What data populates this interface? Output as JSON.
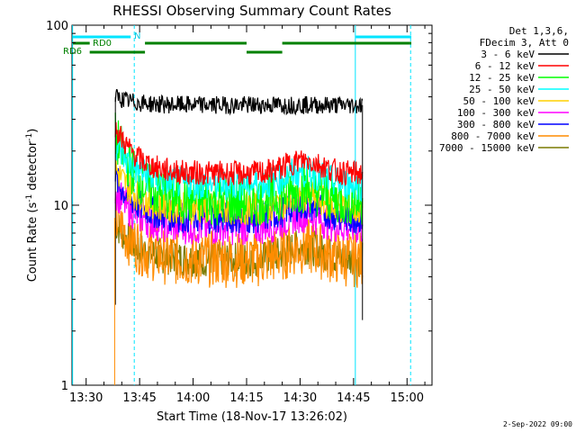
{
  "chart_data": {
    "type": "line",
    "title": "RHESSI Observing Summary Count Rates",
    "xlabel": "Start Time (18-Nov-17 13:26:02)",
    "ylabel_main": "Count Rate (s",
    "ylabel_sup1": "-1",
    "ylabel_mid": " detector",
    "ylabel_sup2": "-1",
    "ylabel_end": ")",
    "y_scale": "log",
    "ylim": [
      1,
      100
    ],
    "y_ticks": [
      1,
      10,
      100
    ],
    "y_tick_labels": [
      "1",
      "10",
      "100"
    ],
    "x_ticks": [
      "13:30",
      "13:45",
      "14:00",
      "14:15",
      "14:30",
      "14:45",
      "15:00"
    ],
    "xlim": [
      "13:26:02",
      "15:07"
    ],
    "grid": false,
    "legend_placement": "top-right",
    "legend_header": [
      "Det 1,3,6,",
      "FDecim 3, Att 0"
    ],
    "series": [
      {
        "name": "3 - 6 keV",
        "color": "#000000",
        "level": 36,
        "start_level": 40,
        "noise": 0.05
      },
      {
        "name": "6 - 12 keV",
        "color": "#ff0000",
        "level": 15,
        "start_level": 27,
        "noise": 0.07
      },
      {
        "name": "12 - 25 keV",
        "color": "#00ff00",
        "level": 10.5,
        "start_level": 24,
        "noise": 0.14
      },
      {
        "name": "25 - 50 keV",
        "color": "#00ffff",
        "level": 13,
        "start_level": 22,
        "noise": 0.09
      },
      {
        "name": "50 - 100 keV",
        "color": "#ffd000",
        "level": 9.5,
        "start_level": 16,
        "noise": 0.09
      },
      {
        "name": "100 - 300 keV",
        "color": "#ff00ff",
        "level": 7.5,
        "start_level": 12,
        "noise": 0.1
      },
      {
        "name": "300 - 800 keV",
        "color": "#0000ff",
        "level": 8.5,
        "start_level": 14,
        "noise": 0.09
      },
      {
        "name": "800 - 7000 keV",
        "color": "#ff8c00",
        "level": 5,
        "start_level": 8.5,
        "noise": 0.16
      },
      {
        "name": "7000 - 15000 keV",
        "color": "#7a7a00",
        "level": 5,
        "start_level": 8,
        "noise": 0.1
      }
    ],
    "flag_labels": {
      "rd0": "RD0",
      "rd6": "RD6",
      "n": "N"
    },
    "date_stamp": "2-Sep-2022 09:00",
    "colors": {
      "axis": "#000000",
      "flag_green": "#008000",
      "flag_cyan": "#00e5ff",
      "vline_cyan": "#00e5ff"
    }
  }
}
